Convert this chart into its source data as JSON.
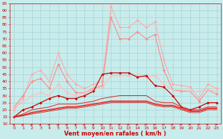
{
  "x": [
    0,
    1,
    2,
    3,
    4,
    5,
    6,
    7,
    8,
    9,
    10,
    11,
    12,
    13,
    14,
    15,
    16,
    17,
    18,
    19,
    20,
    21,
    22,
    23
  ],
  "series": [
    {
      "label": "light_pink_marker",
      "color": "#ffaaaa",
      "linewidth": 0.8,
      "marker": "D",
      "markersize": 1.8,
      "values": [
        20,
        28,
        45,
        48,
        40,
        60,
        45,
        38,
        35,
        38,
        40,
        93,
        78,
        78,
        83,
        78,
        82,
        55,
        38,
        37,
        36,
        28,
        38,
        35
      ]
    },
    {
      "label": "medium_pink_marker",
      "color": "#ff8888",
      "linewidth": 0.8,
      "marker": "D",
      "markersize": 1.8,
      "values": [
        22,
        30,
        40,
        42,
        35,
        52,
        40,
        32,
        32,
        35,
        37,
        85,
        70,
        70,
        75,
        70,
        73,
        48,
        34,
        33,
        33,
        26,
        34,
        31
      ]
    },
    {
      "label": "medium_pink_flat",
      "color": "#ffbbbb",
      "linewidth": 0.8,
      "marker": "D",
      "markersize": 1.8,
      "values": [
        22,
        25,
        30,
        32,
        30,
        38,
        32,
        30,
        32,
        34,
        36,
        44,
        44,
        44,
        44,
        43,
        44,
        38,
        34,
        34,
        33,
        33,
        34,
        33
      ]
    },
    {
      "label": "dark_red_marker",
      "color": "#cc0000",
      "linewidth": 0.9,
      "marker": "D",
      "markersize": 1.8,
      "values": [
        15,
        20,
        22,
        25,
        28,
        30,
        28,
        28,
        30,
        33,
        45,
        46,
        46,
        46,
        43,
        44,
        37,
        36,
        30,
        22,
        20,
        22,
        25,
        25
      ]
    },
    {
      "label": "dark_red_thin1",
      "color": "#dd2222",
      "linewidth": 0.7,
      "marker": null,
      "markersize": 0,
      "values": [
        15,
        17,
        20,
        21,
        22,
        24,
        24,
        24,
        25,
        26,
        28,
        29,
        30,
        30,
        30,
        30,
        26,
        25,
        25,
        22,
        20,
        20,
        22,
        22
      ]
    },
    {
      "label": "dark_red_thin2",
      "color": "#ee3333",
      "linewidth": 1.5,
      "marker": null,
      "markersize": 0,
      "values": [
        15,
        16,
        18,
        19,
        20,
        21,
        22,
        22,
        23,
        24,
        25,
        26,
        26,
        26,
        26,
        26,
        24,
        23,
        23,
        21,
        19,
        19,
        21,
        21
      ]
    },
    {
      "label": "dark_red_thin3",
      "color": "#cc0000",
      "linewidth": 0.5,
      "marker": null,
      "markersize": 0,
      "values": [
        15,
        16,
        17,
        18,
        19,
        20,
        21,
        21,
        22,
        23,
        24,
        25,
        25,
        25,
        25,
        25,
        23,
        22,
        22,
        20,
        18,
        18,
        20,
        20
      ]
    }
  ],
  "ylim": [
    10,
    95
  ],
  "yticks": [
    10,
    15,
    20,
    25,
    30,
    35,
    40,
    45,
    50,
    55,
    60,
    65,
    70,
    75,
    80,
    85,
    90,
    95
  ],
  "xlim": [
    -0.5,
    23.5
  ],
  "xticks": [
    0,
    1,
    2,
    3,
    4,
    5,
    6,
    7,
    8,
    9,
    10,
    11,
    12,
    13,
    14,
    15,
    16,
    17,
    18,
    19,
    20,
    21,
    22,
    23
  ],
  "xlabel": "Vent moyen/en rafales ( km/h )",
  "xlabel_color": "#cc0000",
  "xlabel_fontsize": 6,
  "tick_color": "#cc0000",
  "tick_fontsize": 4.5,
  "bg_color": "#c8ecec",
  "grid_color": "#a0cccc",
  "arrow_color": "#cc0000",
  "figsize": [
    3.2,
    2.0
  ],
  "dpi": 100
}
